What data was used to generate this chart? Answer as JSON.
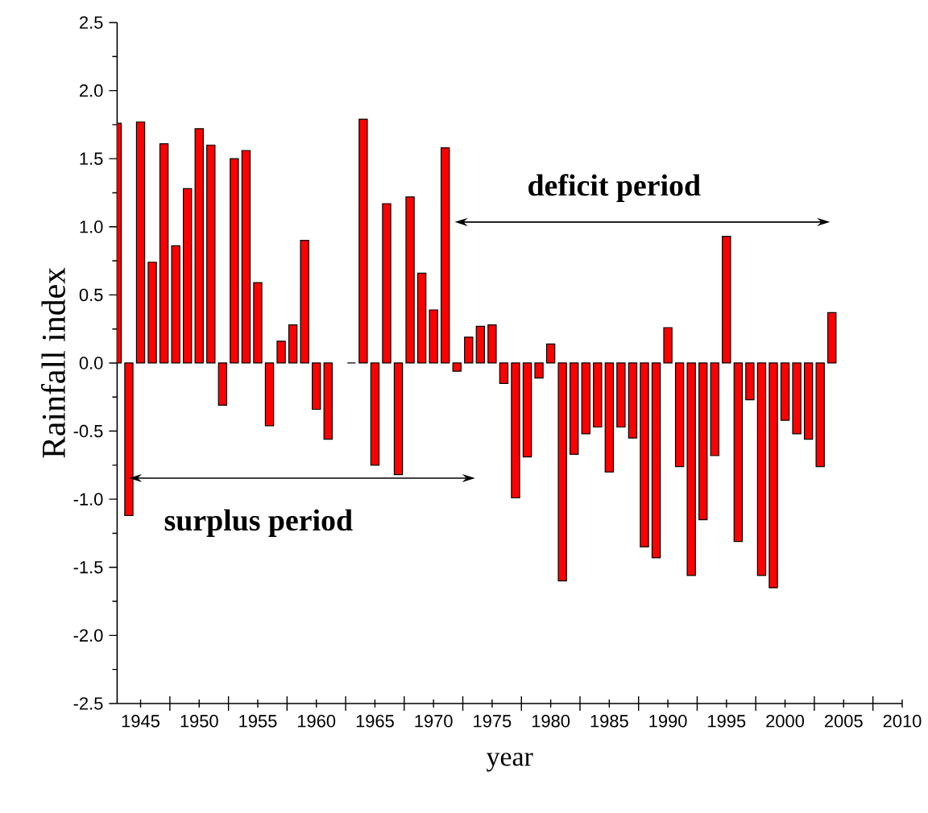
{
  "chart_data": {
    "type": "bar",
    "xlabel": "year",
    "ylabel": "Rainfall index",
    "annotations": [
      "surplus period",
      "deficit period"
    ],
    "x": [
      1943,
      1944,
      1945,
      1946,
      1947,
      1948,
      1949,
      1950,
      1951,
      1952,
      1953,
      1954,
      1955,
      1956,
      1957,
      1958,
      1959,
      1960,
      1961,
      1962,
      1963,
      1964,
      1965,
      1966,
      1967,
      1968,
      1969,
      1970,
      1971,
      1972,
      1973,
      1974,
      1975,
      1976,
      1977,
      1978,
      1979,
      1980,
      1981,
      1982,
      1983,
      1984,
      1985,
      1986,
      1987,
      1988,
      1989,
      1990,
      1991,
      1992,
      1993,
      1994,
      1995,
      1996,
      1997,
      1998,
      1999,
      2000,
      2001,
      2002,
      2003,
      2004
    ],
    "values": [
      1.76,
      -1.12,
      1.77,
      0.74,
      1.61,
      0.86,
      1.28,
      1.72,
      1.6,
      -0.31,
      1.5,
      1.56,
      0.59,
      -0.46,
      0.16,
      0.28,
      0.9,
      -0.34,
      -0.56,
      null,
      0.0,
      1.79,
      -0.75,
      1.17,
      -0.82,
      1.22,
      0.66,
      0.39,
      1.58,
      -0.06,
      0.19,
      0.27,
      0.28,
      -0.15,
      -0.99,
      -0.69,
      -0.11,
      0.14,
      -1.6,
      -0.67,
      -0.52,
      -0.47,
      -0.8,
      -0.47,
      -0.55,
      -1.35,
      -1.43,
      0.26,
      -0.76,
      -1.56,
      -1.15,
      -0.68,
      0.93,
      -1.31,
      -0.27,
      -1.56,
      -1.65,
      -0.42,
      -0.52,
      -0.56,
      -0.76,
      0.37
    ],
    "color": "#ff0000",
    "xlim": [
      1943,
      2010
    ],
    "xticks": [
      1945,
      {
        "value": 1947.5,
        "label": null
      },
      1950,
      {
        "value": 1952.5,
        "label": null
      },
      1955,
      {
        "value": 1957.5,
        "label": null
      },
      1960,
      {
        "value": 1962.5,
        "label": null
      },
      1965,
      {
        "value": 1967.5,
        "label": null
      },
      1970,
      {
        "value": 1972.5,
        "label": null
      },
      1975,
      {
        "value": 1977.5,
        "label": null
      },
      1980,
      {
        "value": 1982.5,
        "label": null
      },
      1985,
      {
        "value": 1987.5,
        "label": null
      },
      1990,
      {
        "value": 1992.5,
        "label": null
      },
      1995,
      {
        "value": 1997.5,
        "label": null
      },
      2000,
      {
        "value": 2002.5,
        "label": null
      },
      2005,
      {
        "value": 2007.5,
        "label": null
      },
      2010
    ],
    "ylim": [
      -2.5,
      2.5
    ],
    "yticks": [
      -2.5,
      {
        "value": -2,
        "label": "-2.0"
      },
      -1.5,
      {
        "value": -1,
        "label": "-1.0"
      },
      -0.5,
      {
        "value": 0,
        "label": "0.0"
      },
      0.5,
      {
        "value": 1,
        "label": "1.0"
      },
      1.5,
      {
        "value": 2,
        "label": "2.0"
      },
      2.5
    ]
  }
}
